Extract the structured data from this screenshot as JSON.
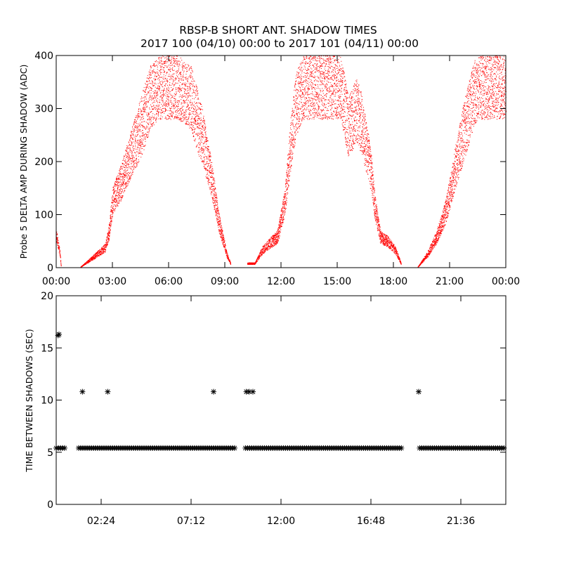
{
  "title": {
    "line1": "RBSP-B SHORT ANT. SHADOW TIMES",
    "line2": "2017 100 (04/10) 00:00 to 2017 101 (04/11) 00:00"
  },
  "chart_data": [
    {
      "type": "scatter",
      "name": "delta-amp",
      "ylabel": "Probe 5 DELTA AMP DURING SHADOW (ADC)",
      "xlabel": "",
      "xlim_hours": [
        0,
        24
      ],
      "ylim": [
        0,
        400
      ],
      "color": "#ff0000",
      "x_tick_labels": [
        "00:00",
        "03:00",
        "06:00",
        "09:00",
        "12:00",
        "15:00",
        "18:00",
        "21:00",
        "00:00"
      ],
      "x_tick_hours": [
        0,
        3,
        6,
        9,
        12,
        15,
        18,
        21,
        24
      ],
      "y_tick_labels": [
        "0",
        "100",
        "200",
        "300",
        "400"
      ],
      "y_ticks": [
        0,
        100,
        200,
        300,
        400
      ],
      "envelope": [
        {
          "segment": 1,
          "points": [
            [
              0.0,
              75
            ],
            [
              0.2,
              30
            ],
            [
              0.25,
              5
            ]
          ]
        },
        {
          "segment": 2,
          "points": [
            [
              1.3,
              2
            ],
            [
              2.0,
              25
            ],
            [
              2.6,
              45
            ],
            [
              2.8,
              80
            ],
            [
              3.0,
              150
            ],
            [
              3.5,
              200
            ],
            [
              4.0,
              260
            ],
            [
              4.5,
              320
            ],
            [
              5.0,
              380
            ],
            [
              5.5,
              400
            ],
            [
              6.5,
              400
            ],
            [
              7.2,
              380
            ],
            [
              7.8,
              300
            ],
            [
              8.3,
              200
            ],
            [
              8.7,
              100
            ],
            [
              9.1,
              30
            ],
            [
              9.3,
              10
            ]
          ]
        },
        {
          "segment": 3,
          "points": [
            [
              10.2,
              10
            ],
            [
              10.6,
              10
            ],
            [
              11.0,
              40
            ],
            [
              11.5,
              60
            ],
            [
              11.8,
              70
            ],
            [
              12.2,
              150
            ],
            [
              12.5,
              280
            ],
            [
              12.8,
              370
            ],
            [
              13.2,
              400
            ],
            [
              15.2,
              400
            ],
            [
              15.6,
              320
            ],
            [
              16.0,
              360
            ],
            [
              16.3,
              330
            ],
            [
              16.8,
              220
            ],
            [
              17.0,
              140
            ],
            [
              17.3,
              70
            ],
            [
              17.7,
              60
            ],
            [
              18.1,
              40
            ],
            [
              18.4,
              10
            ]
          ]
        },
        {
          "segment": 4,
          "points": [
            [
              19.3,
              2
            ],
            [
              19.8,
              30
            ],
            [
              20.3,
              70
            ],
            [
              20.8,
              130
            ],
            [
              21.3,
              230
            ],
            [
              21.8,
              320
            ],
            [
              22.3,
              390
            ],
            [
              22.6,
              400
            ],
            [
              24.0,
              400
            ]
          ]
        }
      ]
    },
    {
      "type": "scatter",
      "name": "time-between-shadows",
      "ylabel": "TIME BETWEEN SHADOWS (SEC)",
      "xlabel": "",
      "xlim_hours": [
        0,
        24
      ],
      "ylim": [
        0,
        20
      ],
      "color": "#000000",
      "marker": "*",
      "x_tick_labels": [
        "02:24",
        "07:12",
        "12:00",
        "16:48",
        "21:36"
      ],
      "x_tick_hours": [
        2.4,
        7.2,
        12.0,
        16.8,
        21.6
      ],
      "y_tick_labels": [
        "0",
        "5",
        "10",
        "15",
        "20"
      ],
      "y_ticks": [
        0,
        5,
        10,
        15,
        20
      ],
      "baseline_value": 5.4,
      "baseline_ranges_hours": [
        [
          0.0,
          0.45
        ],
        [
          1.2,
          9.6
        ],
        [
          10.1,
          18.5
        ],
        [
          19.4,
          24.0
        ]
      ],
      "outliers": [
        [
          0.1,
          16.2
        ],
        [
          0.15,
          16.3
        ],
        [
          1.4,
          10.8
        ],
        [
          2.75,
          10.8
        ],
        [
          8.4,
          10.8
        ],
        [
          10.15,
          10.8
        ],
        [
          10.3,
          10.8
        ],
        [
          10.5,
          10.8
        ],
        [
          19.35,
          10.8
        ]
      ]
    }
  ]
}
